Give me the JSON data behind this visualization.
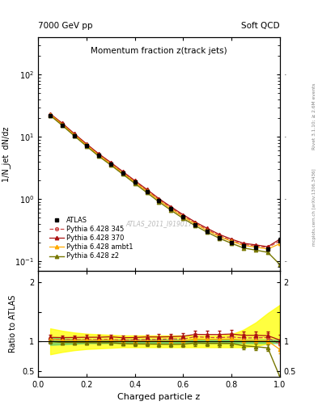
{
  "title": "Momentum fraction z(track jets)",
  "top_left_label": "7000 GeV pp",
  "top_right_label": "Soft QCD",
  "right_label_top": "Rivet 3.1.10; ≥ 2.6M events",
  "right_label_bot": "mcplots.cern.ch [arXiv:1306.3436]",
  "watermark": "ATLAS_2011_I919017",
  "xlabel": "Charged particle z",
  "ylabel_main": "1/N_jet  dN/dz",
  "ylabel_ratio": "Ratio to ATLAS",
  "xlim": [
    0.0,
    1.0
  ],
  "ylim_main": [
    0.07,
    400
  ],
  "ylim_ratio": [
    0.4,
    2.2
  ],
  "z_data": [
    0.05,
    0.1,
    0.15,
    0.2,
    0.25,
    0.3,
    0.35,
    0.4,
    0.45,
    0.5,
    0.55,
    0.6,
    0.65,
    0.7,
    0.75,
    0.8,
    0.85,
    0.9,
    0.95,
    1.0
  ],
  "atlas_y": [
    22.0,
    15.5,
    10.5,
    7.2,
    5.0,
    3.6,
    2.6,
    1.85,
    1.32,
    0.94,
    0.69,
    0.51,
    0.38,
    0.3,
    0.24,
    0.2,
    0.175,
    0.165,
    0.155,
    0.22
  ],
  "atlas_yerr": [
    0.8,
    0.5,
    0.35,
    0.25,
    0.18,
    0.13,
    0.09,
    0.07,
    0.05,
    0.04,
    0.03,
    0.025,
    0.02,
    0.016,
    0.014,
    0.012,
    0.011,
    0.01,
    0.01,
    0.018
  ],
  "p345_y": [
    22.5,
    16.0,
    10.8,
    7.4,
    5.15,
    3.72,
    2.65,
    1.9,
    1.36,
    0.97,
    0.72,
    0.53,
    0.41,
    0.32,
    0.255,
    0.215,
    0.185,
    0.175,
    0.165,
    0.21
  ],
  "p345_color": "#cc4444",
  "p345_label": "Pythia 6.428 345",
  "p370_y": [
    23.5,
    16.5,
    11.2,
    7.7,
    5.35,
    3.88,
    2.76,
    1.97,
    1.42,
    1.01,
    0.745,
    0.555,
    0.425,
    0.335,
    0.268,
    0.225,
    0.193,
    0.182,
    0.17,
    0.225
  ],
  "p370_color": "#aa1111",
  "p370_label": "Pythia 6.428 370",
  "pambt1_y": [
    22.8,
    15.8,
    10.7,
    7.35,
    5.08,
    3.68,
    2.61,
    1.86,
    1.33,
    0.945,
    0.695,
    0.515,
    0.395,
    0.31,
    0.248,
    0.208,
    0.178,
    0.168,
    0.156,
    0.19
  ],
  "pambt1_color": "#ffaa00",
  "pambt1_label": "Pythia 6.428 ambt1",
  "pz2_y": [
    22.0,
    15.2,
    10.3,
    7.05,
    4.88,
    3.52,
    2.5,
    1.77,
    1.26,
    0.895,
    0.655,
    0.485,
    0.37,
    0.29,
    0.232,
    0.193,
    0.162,
    0.15,
    0.138,
    0.088
  ],
  "pz2_color": "#777700",
  "pz2_label": "Pythia 6.428 z2",
  "band_green_lo": [
    0.94,
    0.95,
    0.96,
    0.97,
    0.97,
    0.97,
    0.97,
    0.97,
    0.97,
    0.97,
    0.97,
    0.97,
    0.97,
    0.97,
    0.97,
    0.97,
    0.97,
    0.97,
    0.97,
    0.97
  ],
  "band_green_hi": [
    1.06,
    1.05,
    1.04,
    1.03,
    1.03,
    1.03,
    1.03,
    1.03,
    1.03,
    1.03,
    1.03,
    1.03,
    1.03,
    1.03,
    1.03,
    1.03,
    1.03,
    1.03,
    1.03,
    1.03
  ],
  "band_yellow_lo": [
    0.78,
    0.82,
    0.85,
    0.87,
    0.88,
    0.89,
    0.9,
    0.9,
    0.9,
    0.9,
    0.9,
    0.9,
    0.9,
    0.9,
    0.9,
    0.9,
    0.9,
    0.92,
    0.96,
    1.02
  ],
  "band_yellow_hi": [
    1.22,
    1.18,
    1.15,
    1.13,
    1.12,
    1.11,
    1.1,
    1.1,
    1.1,
    1.1,
    1.1,
    1.1,
    1.1,
    1.1,
    1.1,
    1.12,
    1.2,
    1.32,
    1.48,
    1.62
  ],
  "background_color": "#ffffff"
}
